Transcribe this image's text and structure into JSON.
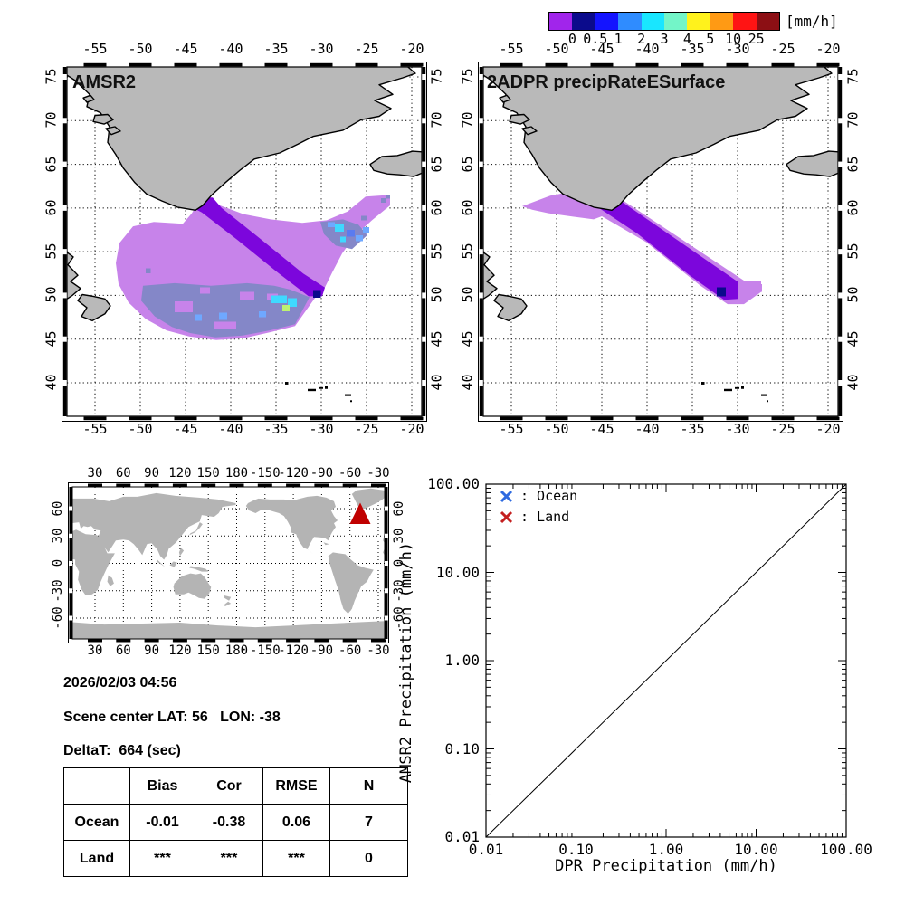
{
  "colorbar": {
    "unit": "[mm/h]",
    "ticks": [
      "0",
      "0.5",
      "1",
      "2",
      "3",
      "4",
      "5",
      "10",
      "25"
    ],
    "colors": [
      "#A125EB",
      "#0B0B8C",
      "#1414FF",
      "#2F8CFF",
      "#19E6FF",
      "#73F5C8",
      "#FFF21C",
      "#FF9A14",
      "#FF1414",
      "#8C0F14"
    ]
  },
  "maps": {
    "left": {
      "title": "AMSR2"
    },
    "right": {
      "title": "2ADPR precipRateESurface"
    },
    "lon_tick_labels": [
      "-55",
      "-50",
      "-45",
      "-40",
      "-35",
      "-30",
      "-25",
      "-20"
    ],
    "lon_tick_values": [
      -55,
      -50,
      -45,
      -40,
      -35,
      -30,
      -25,
      -20
    ],
    "lat_tick_labels": [
      "75",
      "70",
      "65",
      "60",
      "55",
      "50",
      "45",
      "40"
    ],
    "lat_tick_values": [
      75,
      70,
      65,
      60,
      55,
      50,
      45,
      40
    ],
    "land_color": "#b9b9b9",
    "swath_colors": {
      "violet": "#C783EA",
      "dark_purple": "#7C06DC",
      "slate": "#8487C8",
      "cyan": "#3FD9FF",
      "light_blue": "#6FA8FF",
      "blue": "#5A7BF0",
      "green": "#BDF271",
      "navy": "#0A0A8C"
    }
  },
  "world_map": {
    "lon_tick_labels": [
      "30",
      "60",
      "90",
      "120",
      "150",
      "180",
      "-150",
      "-120",
      "-90",
      "-60",
      "-30"
    ],
    "lon_tick_positions": [
      30,
      60,
      90,
      120,
      150,
      180,
      210,
      240,
      270,
      300,
      330
    ],
    "lat_tick_labels": [
      "60",
      "30",
      "0",
      "-30",
      "-60"
    ],
    "lat_tick_values": [
      60,
      30,
      0,
      -30,
      -60
    ],
    "marker_color": "#C00000",
    "land_color": "#b4b4b4"
  },
  "info": {
    "datetime": "2026/02/03 04:56",
    "scene_center": "Scene center LAT: 56   LON: -38",
    "delta_t": "DeltaT:  664 (sec)"
  },
  "stats_table": {
    "headers": [
      "",
      "Bias",
      "Cor",
      "RMSE",
      "N"
    ],
    "rows": [
      [
        "Ocean",
        "-0.01",
        "-0.38",
        "0.06",
        "7"
      ],
      [
        "Land",
        "***",
        "***",
        "***",
        "0"
      ]
    ]
  },
  "scatter": {
    "legend": [
      {
        "label": ": Ocean",
        "color": "#2E6AE0"
      },
      {
        "label": ": Land",
        "color": "#C42020"
      }
    ],
    "x_tick_labels": [
      "0.01",
      "0.10",
      "1.00",
      "10.00",
      "100.00"
    ],
    "y_tick_labels": [
      "100.00",
      "10.00",
      "1.00",
      "0.10",
      "0.01"
    ],
    "xlabel": "DPR Precipitation (mm/h)",
    "ylabel": "AMSR2 Precipitation (mm/h)"
  },
  "chart_data": [
    {
      "type": "heatmap",
      "subtype": "satellite-precip-map",
      "title": "AMSR2",
      "units": "mm/h",
      "region": {
        "lon": [
          -58.7,
          -18.3
        ],
        "lat": [
          35.6,
          76.8
        ]
      },
      "palette_breaks": [
        0,
        0.5,
        1,
        2,
        3,
        4,
        5,
        10,
        25
      ],
      "description": "AMSR2 precipitation swath south of Greenland: broad 0-0.5 mm/h violet field (lon -52..-22, lat 45..61), a 0.5-1 mm/h dark purple diagonal band from (-44,61) to (-30,50), a 0-0.5 slate shaded sub-region along lat 46-51 and lon -30..-25, scattered 1-3 mm/h cyan/blue cells near (-35,49.5) and (-28,58), one 2-3 mm/h navy cell at (-30.8,50.3)"
    },
    {
      "type": "heatmap",
      "subtype": "satellite-precip-map",
      "title": "2ADPR precipRateESurface",
      "units": "mm/h",
      "region": {
        "lon": [
          -58.7,
          -18.3
        ],
        "lat": [
          35.6,
          76.8
        ]
      },
      "palette_breaks": [
        0,
        0.5,
        1,
        2,
        3,
        4,
        5,
        10,
        25
      ],
      "description": "DPR narrow swath: violet 0-0.5 mm/h wedge near Greenland's southwest tip (lon -54..-43, lat 59..62) and a 0.5-1 mm/h dark purple diagonal core running from (-45,61) to (-30,50) with violet fringe, one navy 2-3 mm/h cell near (-32,50.5)"
    },
    {
      "type": "map",
      "subtype": "scene-locator",
      "marker": {
        "lat": 56,
        "lon": -38
      },
      "projection": "pacific-centered cylindrical, lon 0..360, lat -90..90"
    },
    {
      "type": "scatter",
      "xscale": "log",
      "yscale": "log",
      "xlim": [
        0.01,
        100
      ],
      "ylim": [
        0.01,
        100
      ],
      "xlabel": "DPR Precipitation (mm/h)",
      "ylabel": "AMSR2 Precipitation (mm/h)",
      "identity_line": true,
      "series": [
        {
          "name": "Ocean",
          "points": []
        },
        {
          "name": "Land",
          "points": []
        }
      ],
      "stats": {
        "Ocean": {
          "Bias": -0.01,
          "Cor": -0.38,
          "RMSE": 0.06,
          "N": 7
        },
        "Land": {
          "Bias": null,
          "Cor": null,
          "RMSE": null,
          "N": 0
        }
      }
    }
  ]
}
